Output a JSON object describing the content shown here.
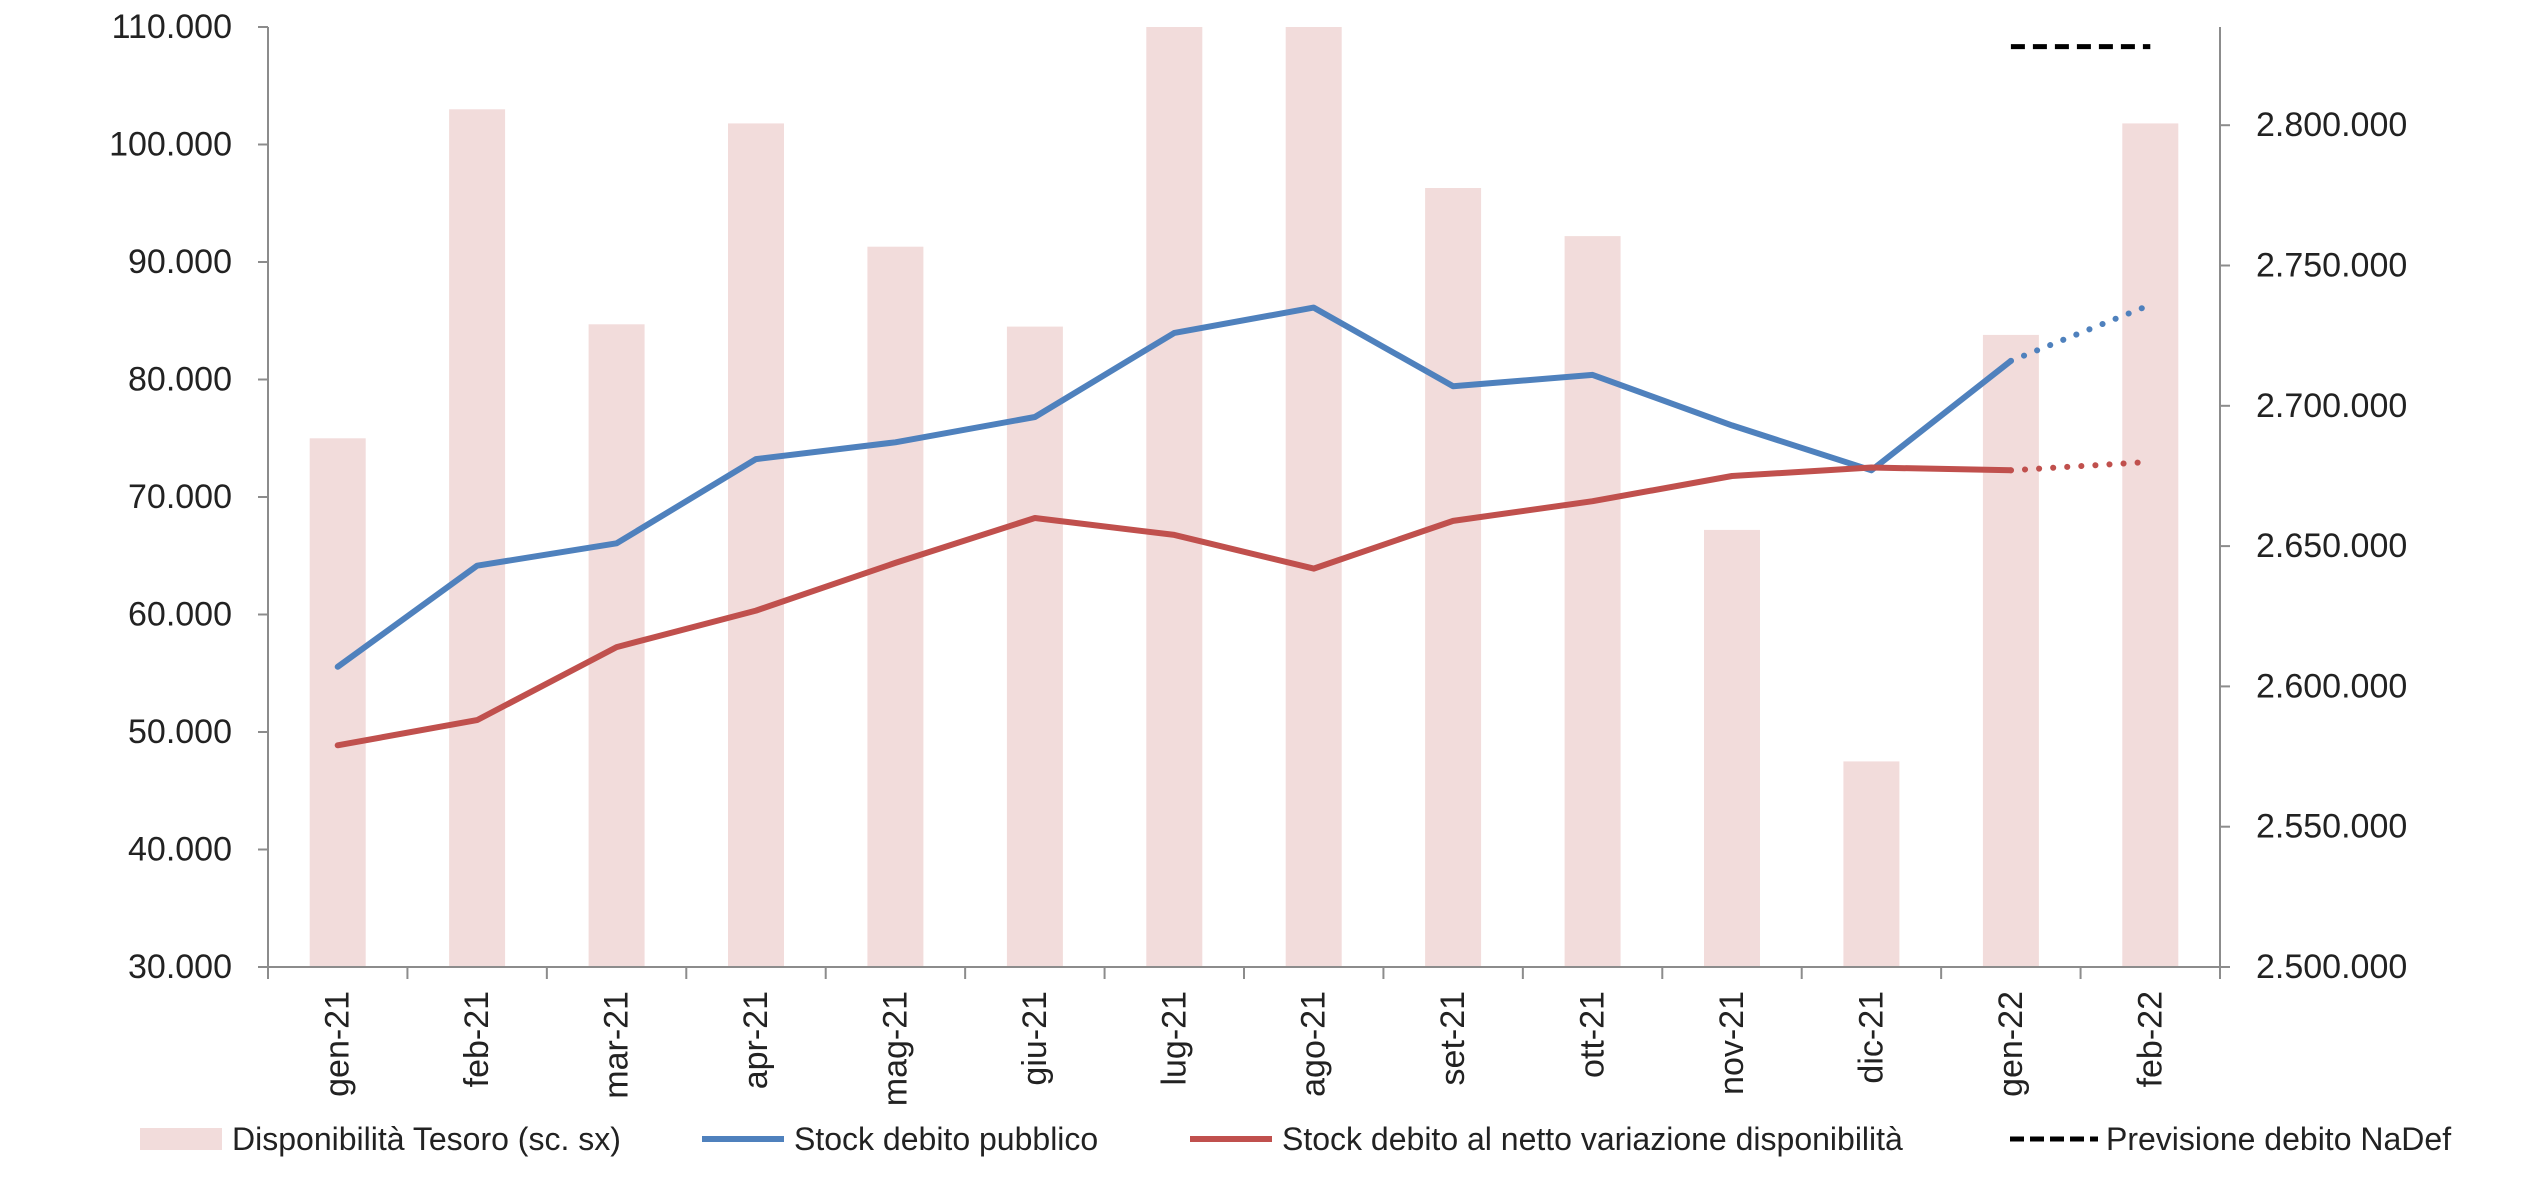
{
  "chart_data": {
    "type": "bar",
    "categories": [
      "gen-21",
      "feb-21",
      "mar-21",
      "apr-21",
      "mag-21",
      "giu-21",
      "lug-21",
      "ago-21",
      "set-21",
      "ott-21",
      "nov-21",
      "dic-21",
      "gen-22",
      "feb-22"
    ],
    "left_axis": {
      "ylim": [
        30000,
        110000
      ],
      "ticks": [
        "30.000",
        "40.000",
        "50.000",
        "60.000",
        "70.000",
        "80.000",
        "90.000",
        "100.000",
        "110.000"
      ]
    },
    "right_axis": {
      "ylim": [
        2500000,
        2835000
      ],
      "ticks": [
        "2.500.000",
        "2.550.000",
        "2.600.000",
        "2.650.000",
        "2.700.000",
        "2.750.000",
        "2.800.000"
      ]
    },
    "series": [
      {
        "name": "Disponibilità Tesoro (sc. sx)",
        "kind": "bar",
        "axis": "left",
        "color": "#f2dcdb",
        "values": [
          75000,
          103000,
          84700,
          101800,
          91300,
          84500,
          110000,
          110000,
          96300,
          92200,
          67200,
          47500,
          83800,
          101800
        ]
      },
      {
        "name": "Stock debito pubblico",
        "kind": "line",
        "axis": "right",
        "color": "#4f81bd",
        "values": [
          2607000,
          2643000,
          2651000,
          2681000,
          2687000,
          2696000,
          2726000,
          2735000,
          2707000,
          2711000,
          2693000,
          2677000,
          2716000,
          2736000
        ],
        "dotted_from_index": 12
      },
      {
        "name": "Stock debito al netto variazione disponibilità",
        "kind": "line",
        "axis": "right",
        "color": "#c0504d",
        "values": [
          2579000,
          2588000,
          2614000,
          2627000,
          2644000,
          2660000,
          2654000,
          2642000,
          2659000,
          2666000,
          2675000,
          2678000,
          2677000,
          2680000
        ],
        "dotted_from_index": 12
      },
      {
        "name": "Previsione debito NaDef",
        "kind": "dashed-segment",
        "axis": "right",
        "color": "#000000",
        "value": 2828000,
        "from_category": "gen-22",
        "to_category": "feb-22"
      }
    ],
    "legend_position": "bottom",
    "grid": false
  }
}
